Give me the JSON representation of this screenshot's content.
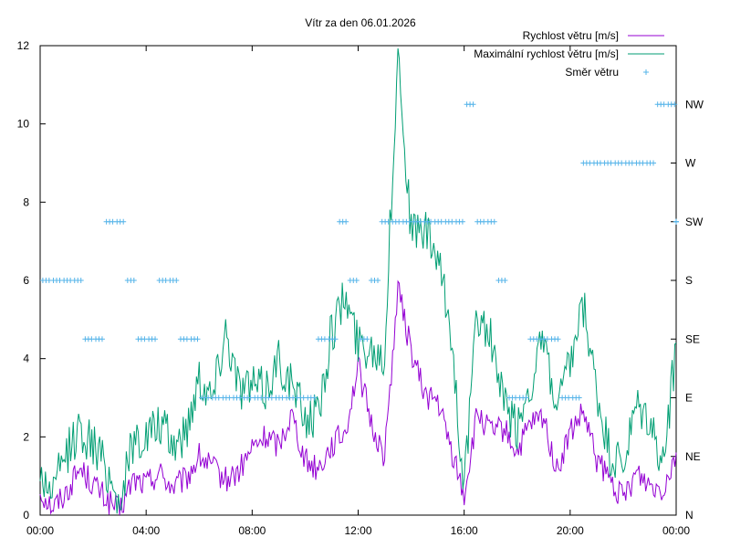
{
  "chart_data": {
    "type": "line",
    "title": "Vítr za den 06.01.2026",
    "xlabel": "",
    "ylabel": "",
    "x_tick_labels": [
      "00:00",
      "04:00",
      "08:00",
      "12:00",
      "16:00",
      "20:00",
      "00:00"
    ],
    "x_tick_hours": [
      0,
      4,
      8,
      12,
      16,
      20,
      24
    ],
    "xlim": [
      0,
      24
    ],
    "ylim": [
      0,
      12
    ],
    "y_ticks": [
      0,
      2,
      4,
      6,
      8,
      10,
      12
    ],
    "y2_ticks": [
      {
        "label": "N",
        "value": 0
      },
      {
        "label": "NE",
        "value": 1.5
      },
      {
        "label": "E",
        "value": 3.0
      },
      {
        "label": "SE",
        "value": 4.5
      },
      {
        "label": "S",
        "value": 6.0
      },
      {
        "label": "SW",
        "value": 7.5
      },
      {
        "label": "W",
        "value": 9.0
      },
      {
        "label": "NW",
        "value": 10.5
      }
    ],
    "legend_position": "top-right",
    "series": [
      {
        "name": "Rychlost větru [m/s]",
        "style": "line",
        "color": "#9400d3",
        "x": [
          0,
          0.5,
          1,
          1.5,
          2,
          2.5,
          3,
          3.5,
          4,
          4.5,
          5,
          5.5,
          6,
          6.5,
          7,
          7.5,
          8,
          8.5,
          9,
          9.5,
          10,
          10.5,
          11,
          11.5,
          12,
          12.5,
          13,
          13.5,
          14,
          14.5,
          15,
          15.5,
          16,
          16.5,
          17,
          17.5,
          18,
          18.5,
          19,
          19.5,
          20,
          20.5,
          21,
          21.5,
          22,
          22.5,
          23,
          23.5,
          24
        ],
        "y": [
          0.6,
          0.2,
          0.6,
          1.2,
          0.8,
          0.4,
          0.1,
          0.9,
          0.8,
          1.1,
          0.7,
          0.9,
          1.5,
          1.2,
          0.9,
          1.1,
          1.7,
          2.0,
          1.8,
          2.6,
          1.4,
          1.2,
          1.8,
          2.1,
          3.8,
          2.3,
          1.5,
          5.8,
          4.2,
          3.1,
          2.9,
          1.7,
          0.5,
          2.6,
          2.1,
          2.2,
          1.6,
          2.3,
          2.5,
          1.1,
          2.1,
          2.6,
          1.4,
          0.9,
          0.4,
          1.1,
          0.8,
          0.7,
          1.6
        ]
      },
      {
        "name": "Maximální rychlost větru [m/s]",
        "style": "line",
        "color": "#009e73",
        "x": [
          0,
          0.5,
          1,
          1.5,
          2,
          2.5,
          3,
          3.5,
          4,
          4.5,
          5,
          5.5,
          6,
          6.5,
          7,
          7.5,
          8,
          8.5,
          9,
          9.5,
          10,
          10.5,
          11,
          11.5,
          12,
          12.5,
          13,
          13.5,
          14,
          14.5,
          15,
          15.5,
          16,
          16.5,
          17,
          17.5,
          18,
          18.5,
          19,
          19.5,
          20,
          20.5,
          21,
          21.5,
          22,
          22.5,
          23,
          23.5,
          24
        ],
        "y": [
          1.0,
          0.6,
          1.6,
          2.2,
          1.8,
          1.2,
          0.3,
          1.9,
          2.0,
          2.3,
          1.8,
          2.1,
          3.6,
          3.0,
          4.8,
          3.3,
          3.3,
          3.2,
          4.0,
          3.3,
          2.5,
          2.6,
          4.7,
          5.6,
          4.4,
          4.3,
          4.1,
          11.9,
          7.2,
          7.3,
          6.5,
          4.7,
          0.7,
          5.2,
          4.5,
          2.8,
          2.2,
          3.4,
          4.4,
          2.6,
          3.8,
          5.3,
          3.1,
          1.5,
          1.2,
          2.7,
          2.4,
          1.2,
          4.4
        ]
      },
      {
        "name": "Směr větru",
        "style": "points",
        "color": "#56b4e9",
        "x": [
          0.1,
          0.5,
          0.9,
          1.3,
          1.7,
          2.1,
          2.5,
          2.9,
          3.3,
          3.7,
          4.1,
          4.5,
          4.9,
          5.3,
          5.7,
          6.1,
          6.5,
          6.9,
          7.3,
          7.7,
          8.1,
          8.5,
          8.9,
          9.3,
          9.7,
          10.1,
          10.5,
          10.9,
          11.3,
          11.7,
          12.1,
          12.5,
          12.9,
          13.3,
          13.7,
          14.1,
          14.5,
          14.9,
          15.3,
          15.7,
          16.1,
          16.5,
          16.9,
          17.3,
          17.7,
          18.1,
          18.5,
          18.9,
          19.3,
          19.7,
          20.1,
          20.5,
          20.9,
          21.3,
          21.7,
          22.1,
          22.5,
          22.9,
          23.3,
          23.7,
          24.0
        ],
        "y": [
          6,
          6,
          6,
          6,
          4.5,
          4.5,
          7.5,
          7.5,
          6,
          4.5,
          4.5,
          6,
          6,
          4.5,
          4.5,
          3,
          3,
          3,
          3,
          3,
          3,
          3,
          3,
          3,
          3,
          3,
          4.5,
          4.5,
          7.5,
          6,
          4.5,
          6,
          7.5,
          7.5,
          7.5,
          7.5,
          7.5,
          7.5,
          7.5,
          7.5,
          10.5,
          7.5,
          7.5,
          6,
          3,
          3,
          4.5,
          4.5,
          4.5,
          3,
          3,
          9,
          9,
          9,
          9,
          9,
          9,
          9,
          10.5,
          10.5,
          7.5
        ]
      }
    ]
  }
}
